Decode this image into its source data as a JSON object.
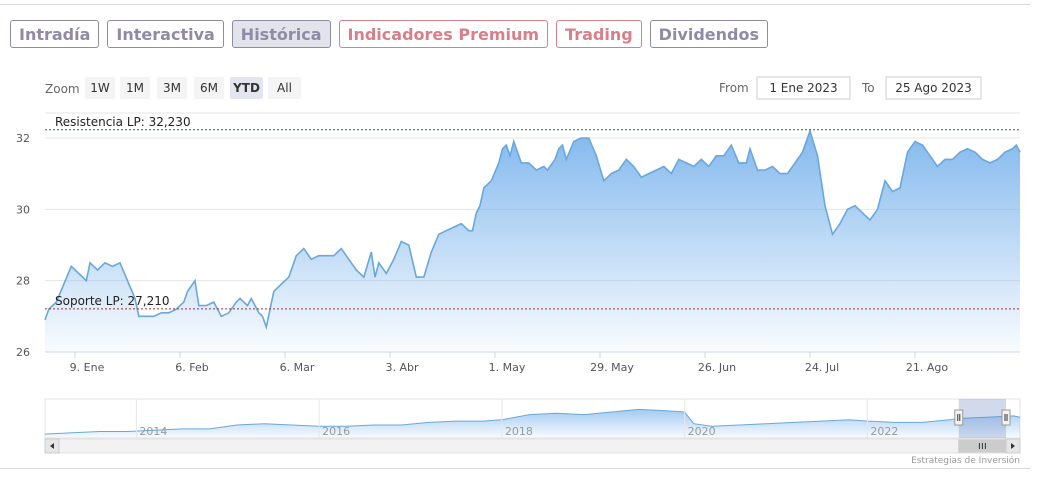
{
  "tabs": [
    {
      "label": "Intradía",
      "style": "normal"
    },
    {
      "label": "Interactiva",
      "style": "normal"
    },
    {
      "label": "Histórica",
      "style": "active"
    },
    {
      "label": "Indicadores Premium",
      "style": "premium"
    },
    {
      "label": "Trading",
      "style": "premium"
    },
    {
      "label": "Dividendos",
      "style": "normal"
    }
  ],
  "zoom": {
    "label": "Zoom",
    "buttons": [
      "1W",
      "1M",
      "3M",
      "6M",
      "YTD",
      "All"
    ],
    "selected": "YTD"
  },
  "range": {
    "from_label": "From",
    "from_value": "1 Ene 2023",
    "to_label": "To",
    "to_value": "25 Ago 2023"
  },
  "credit": "Estrategias de Inversión",
  "colors": {
    "accent": "#7cb5ec",
    "line": "#6aa7dc",
    "tab": "#8e8ba6",
    "premium": "#d97f8a"
  },
  "chart_data": {
    "type": "area",
    "x_start": "2023-01-01",
    "ylim": [
      26,
      32.7
    ],
    "y_ticks": [
      26,
      28,
      30,
      32
    ],
    "y_tick_labels": [
      "26",
      "28",
      "30",
      "32"
    ],
    "x_ticks": [
      {
        "date": "2023-01-09",
        "label": "9. Ene"
      },
      {
        "date": "2023-02-06",
        "label": "6. Feb"
      },
      {
        "date": "2023-03-06",
        "label": "6. Mar"
      },
      {
        "date": "2023-04-03",
        "label": "3. Abr"
      },
      {
        "date": "2023-05-01",
        "label": "1. May"
      },
      {
        "date": "2023-05-29",
        "label": "29. May"
      },
      {
        "date": "2023-06-26",
        "label": "26. Jun"
      },
      {
        "date": "2023-07-24",
        "label": "24. Jul"
      },
      {
        "date": "2023-08-21",
        "label": "21. Ago"
      }
    ],
    "plot_lines": [
      {
        "label": "Resistencia LP: 32,230",
        "value": 32.23,
        "color": "#2a6b2a"
      },
      {
        "label": "Soporte LP: 27,210",
        "value": 27.21,
        "color": "#a03030"
      }
    ],
    "series": [
      {
        "name": "",
        "points": [
          [
            "2023-01-01",
            26.9
          ],
          [
            "2023-01-02",
            27.2
          ],
          [
            "2023-01-04",
            27.4
          ],
          [
            "2023-01-06",
            27.9
          ],
          [
            "2023-01-08",
            28.4
          ],
          [
            "2023-01-10",
            28.2
          ],
          [
            "2023-01-12",
            28.0
          ],
          [
            "2023-01-13",
            28.5
          ],
          [
            "2023-01-15",
            28.3
          ],
          [
            "2023-01-17",
            28.5
          ],
          [
            "2023-01-19",
            28.4
          ],
          [
            "2023-01-21",
            28.5
          ],
          [
            "2023-01-23",
            28.0
          ],
          [
            "2023-01-25",
            27.5
          ],
          [
            "2023-01-26",
            27.0
          ],
          [
            "2023-01-28",
            27.0
          ],
          [
            "2023-01-30",
            27.0
          ],
          [
            "2023-02-01",
            27.1
          ],
          [
            "2023-02-03",
            27.1
          ],
          [
            "2023-02-05",
            27.2
          ],
          [
            "2023-02-07",
            27.4
          ],
          [
            "2023-02-08",
            27.7
          ],
          [
            "2023-02-10",
            28.0
          ],
          [
            "2023-02-11",
            27.3
          ],
          [
            "2023-02-13",
            27.3
          ],
          [
            "2023-02-15",
            27.4
          ],
          [
            "2023-02-17",
            27.0
          ],
          [
            "2023-02-19",
            27.1
          ],
          [
            "2023-02-21",
            27.4
          ],
          [
            "2023-02-22",
            27.5
          ],
          [
            "2023-02-24",
            27.3
          ],
          [
            "2023-02-25",
            27.5
          ],
          [
            "2023-02-27",
            27.1
          ],
          [
            "2023-02-28",
            27.0
          ],
          [
            "2023-03-01",
            26.7
          ],
          [
            "2023-03-03",
            27.7
          ],
          [
            "2023-03-05",
            27.9
          ],
          [
            "2023-03-07",
            28.1
          ],
          [
            "2023-03-09",
            28.7
          ],
          [
            "2023-03-11",
            28.9
          ],
          [
            "2023-03-13",
            28.6
          ],
          [
            "2023-03-15",
            28.7
          ],
          [
            "2023-03-17",
            28.7
          ],
          [
            "2023-03-19",
            28.7
          ],
          [
            "2023-03-21",
            28.9
          ],
          [
            "2023-03-23",
            28.6
          ],
          [
            "2023-03-25",
            28.3
          ],
          [
            "2023-03-27",
            28.1
          ],
          [
            "2023-03-29",
            28.8
          ],
          [
            "2023-03-30",
            28.1
          ],
          [
            "2023-03-31",
            28.5
          ],
          [
            "2023-04-02",
            28.2
          ],
          [
            "2023-04-04",
            28.6
          ],
          [
            "2023-04-06",
            29.1
          ],
          [
            "2023-04-08",
            29.0
          ],
          [
            "2023-04-10",
            28.1
          ],
          [
            "2023-04-12",
            28.1
          ],
          [
            "2023-04-14",
            28.8
          ],
          [
            "2023-04-16",
            29.3
          ],
          [
            "2023-04-18",
            29.4
          ],
          [
            "2023-04-20",
            29.5
          ],
          [
            "2023-04-22",
            29.6
          ],
          [
            "2023-04-24",
            29.4
          ],
          [
            "2023-04-25",
            29.4
          ],
          [
            "2023-04-26",
            29.9
          ],
          [
            "2023-04-27",
            30.1
          ],
          [
            "2023-04-28",
            30.6
          ],
          [
            "2023-04-30",
            30.8
          ],
          [
            "2023-05-02",
            31.3
          ],
          [
            "2023-05-03",
            31.7
          ],
          [
            "2023-05-04",
            31.8
          ],
          [
            "2023-05-05",
            31.5
          ],
          [
            "2023-05-06",
            31.9
          ],
          [
            "2023-05-08",
            31.3
          ],
          [
            "2023-05-10",
            31.3
          ],
          [
            "2023-05-12",
            31.1
          ],
          [
            "2023-05-14",
            31.2
          ],
          [
            "2023-05-15",
            31.1
          ],
          [
            "2023-05-17",
            31.4
          ],
          [
            "2023-05-18",
            31.7
          ],
          [
            "2023-05-19",
            31.8
          ],
          [
            "2023-05-20",
            31.4
          ],
          [
            "2023-05-22",
            31.9
          ],
          [
            "2023-05-24",
            32.0
          ],
          [
            "2023-05-26",
            32.0
          ],
          [
            "2023-05-28",
            31.5
          ],
          [
            "2023-05-30",
            30.8
          ],
          [
            "2023-06-01",
            31.0
          ],
          [
            "2023-06-03",
            31.1
          ],
          [
            "2023-06-05",
            31.4
          ],
          [
            "2023-06-07",
            31.2
          ],
          [
            "2023-06-09",
            30.9
          ],
          [
            "2023-06-11",
            31.0
          ],
          [
            "2023-06-13",
            31.1
          ],
          [
            "2023-06-15",
            31.2
          ],
          [
            "2023-06-17",
            31.0
          ],
          [
            "2023-06-19",
            31.4
          ],
          [
            "2023-06-21",
            31.3
          ],
          [
            "2023-06-23",
            31.2
          ],
          [
            "2023-06-25",
            31.4
          ],
          [
            "2023-06-27",
            31.2
          ],
          [
            "2023-06-29",
            31.5
          ],
          [
            "2023-07-01",
            31.5
          ],
          [
            "2023-07-03",
            31.8
          ],
          [
            "2023-07-05",
            31.3
          ],
          [
            "2023-07-07",
            31.3
          ],
          [
            "2023-07-08",
            31.7
          ],
          [
            "2023-07-10",
            31.1
          ],
          [
            "2023-07-12",
            31.1
          ],
          [
            "2023-07-14",
            31.2
          ],
          [
            "2023-07-16",
            31.0
          ],
          [
            "2023-07-18",
            31.0
          ],
          [
            "2023-07-20",
            31.3
          ],
          [
            "2023-07-22",
            31.6
          ],
          [
            "2023-07-24",
            32.2
          ],
          [
            "2023-07-26",
            31.5
          ],
          [
            "2023-07-28",
            30.1
          ],
          [
            "2023-07-30",
            29.3
          ],
          [
            "2023-08-01",
            29.6
          ],
          [
            "2023-08-03",
            30.0
          ],
          [
            "2023-08-05",
            30.1
          ],
          [
            "2023-08-07",
            29.9
          ],
          [
            "2023-08-09",
            29.7
          ],
          [
            "2023-08-11",
            30.0
          ],
          [
            "2023-08-13",
            30.8
          ],
          [
            "2023-08-15",
            30.5
          ],
          [
            "2023-08-17",
            30.6
          ],
          [
            "2023-08-19",
            31.6
          ],
          [
            "2023-08-21",
            31.9
          ],
          [
            "2023-08-23",
            31.8
          ],
          [
            "2023-08-25",
            31.5
          ],
          [
            "2023-08-27",
            31.2
          ],
          [
            "2023-08-29",
            31.4
          ],
          [
            "2023-08-31",
            31.4
          ],
          [
            "2023-09-02",
            31.6
          ],
          [
            "2023-09-04",
            31.7
          ],
          [
            "2023-09-06",
            31.6
          ],
          [
            "2023-09-08",
            31.4
          ],
          [
            "2023-09-10",
            31.3
          ],
          [
            "2023-09-12",
            31.4
          ],
          [
            "2023-09-14",
            31.6
          ],
          [
            "2023-09-16",
            31.7
          ],
          [
            "2023-09-17",
            31.8
          ],
          [
            "2023-09-18",
            31.6
          ]
        ]
      }
    ],
    "navigator": {
      "x_start": 2013.0,
      "x_end": 2023.67,
      "y_range": [
        15,
        45
      ],
      "year_labels": [
        "2014",
        "2016",
        "2018",
        "2020",
        "2022"
      ],
      "selected_range": [
        "2023-01-01",
        "2023-08-25"
      ],
      "values": [
        [
          2013.0,
          18
        ],
        [
          2013.3,
          19
        ],
        [
          2013.6,
          20
        ],
        [
          2013.9,
          20
        ],
        [
          2014.2,
          21
        ],
        [
          2014.5,
          22
        ],
        [
          2014.8,
          22
        ],
        [
          2015.1,
          25
        ],
        [
          2015.4,
          26
        ],
        [
          2015.7,
          25
        ],
        [
          2016.0,
          24
        ],
        [
          2016.3,
          24
        ],
        [
          2016.6,
          25
        ],
        [
          2016.9,
          25
        ],
        [
          2017.2,
          27
        ],
        [
          2017.5,
          28
        ],
        [
          2017.8,
          28
        ],
        [
          2018.0,
          29
        ],
        [
          2018.3,
          33
        ],
        [
          2018.6,
          34
        ],
        [
          2018.9,
          33
        ],
        [
          2019.2,
          35
        ],
        [
          2019.5,
          37
        ],
        [
          2019.8,
          36
        ],
        [
          2020.0,
          35
        ],
        [
          2020.1,
          26
        ],
        [
          2020.3,
          24
        ],
        [
          2020.6,
          25
        ],
        [
          2020.9,
          26
        ],
        [
          2021.2,
          27
        ],
        [
          2021.5,
          28
        ],
        [
          2021.8,
          29
        ],
        [
          2022.0,
          28
        ],
        [
          2022.3,
          27
        ],
        [
          2022.6,
          27
        ],
        [
          2022.9,
          29
        ],
        [
          2023.0,
          30
        ],
        [
          2023.3,
          31
        ],
        [
          2023.6,
          32
        ],
        [
          2023.67,
          31
        ]
      ]
    }
  }
}
